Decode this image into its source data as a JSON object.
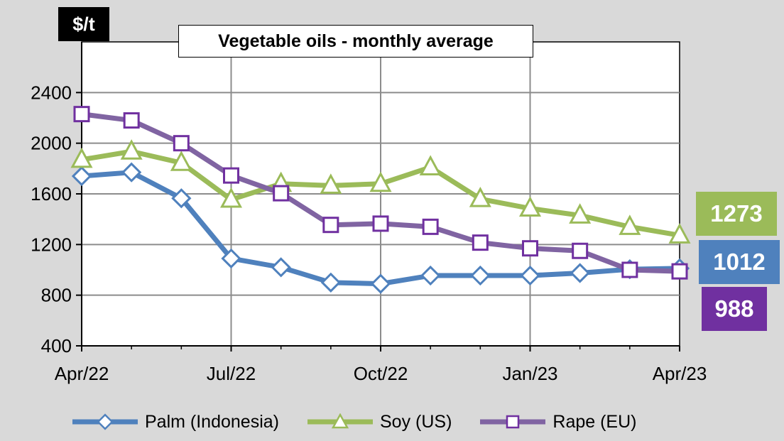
{
  "chart_data": {
    "type": "line",
    "title": "Vegetable oils - monthly average",
    "ylabel": "$/t",
    "ylim": [
      400,
      2800
    ],
    "yticks": [
      400,
      800,
      1200,
      1600,
      2000,
      2400
    ],
    "x": [
      "Apr/22",
      "May/22",
      "Jun/22",
      "Jul/22",
      "Aug/22",
      "Sep/22",
      "Oct/22",
      "Nov/22",
      "Dec/22",
      "Jan/23",
      "Feb/23",
      "Mar/23",
      "Apr/23"
    ],
    "xtick_labels": [
      "Apr/22",
      "Jul/22",
      "Oct/22",
      "Jan/23",
      "Apr/23"
    ],
    "xtick_index": [
      0,
      3,
      6,
      9,
      12
    ],
    "series": [
      {
        "name": "Palm (Indonesia)",
        "color": "#4f81bd",
        "marker": "diamond",
        "values": [
          1740,
          1770,
          1565,
          1090,
          1020,
          900,
          890,
          955,
          955,
          955,
          975,
          1005,
          1012
        ]
      },
      {
        "name": "Soy (US)",
        "color": "#9bbb59",
        "marker": "triangle",
        "values": [
          1870,
          1935,
          1845,
          1555,
          1680,
          1665,
          1680,
          1810,
          1560,
          1485,
          1430,
          1340,
          1273
        ]
      },
      {
        "name": "Rape (EU)",
        "color": "#8064a2",
        "marker": "square",
        "values": [
          2230,
          2180,
          2000,
          1745,
          1605,
          1355,
          1365,
          1340,
          1215,
          1170,
          1150,
          1000,
          988
        ]
      }
    ],
    "end_labels": [
      {
        "series": "Soy (US)",
        "text": "1273",
        "color": "#9bbb59"
      },
      {
        "series": "Palm (Indonesia)",
        "text": "1012",
        "color": "#4f81bd"
      },
      {
        "series": "Rape (EU)",
        "text": "988",
        "color": "#7030a0"
      }
    ],
    "legend": "bottom",
    "grid": true
  }
}
